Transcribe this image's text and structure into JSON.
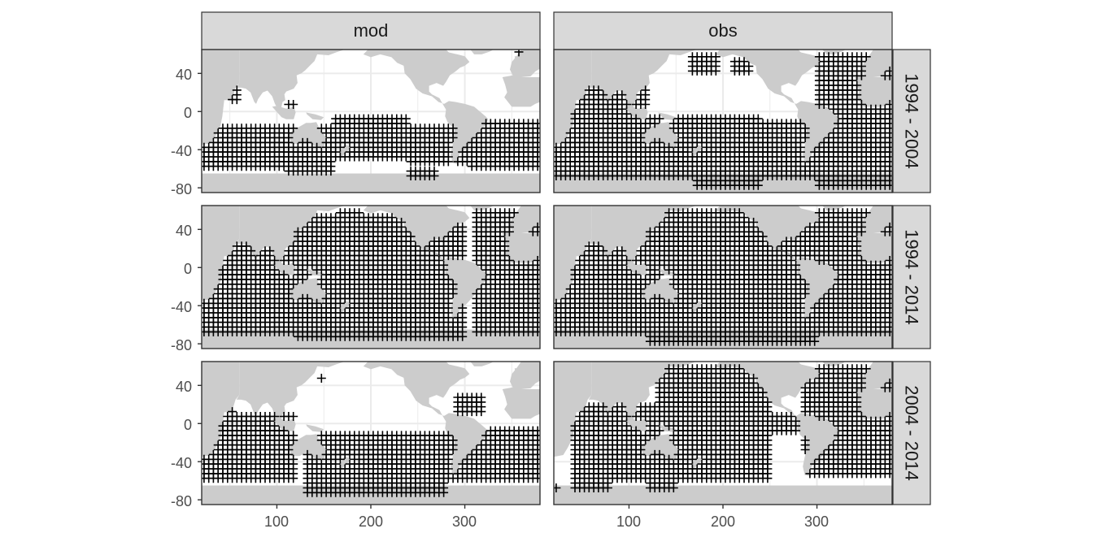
{
  "chart_data": {
    "type": "scatter",
    "facet_columns": [
      "mod",
      "obs"
    ],
    "facet_rows": [
      "1994 - 2004",
      "1994 - 2014",
      "2004 - 2014"
    ],
    "marker": "plus",
    "xlim": [
      20,
      380
    ],
    "ylim": [
      -85,
      65
    ],
    "x_ticks": [
      100,
      200,
      300
    ],
    "y_ticks": [
      40,
      0,
      -40,
      -80
    ],
    "grid": true,
    "legend": "none",
    "colors": {
      "land": "#cccccc",
      "ocean": "#ffffff",
      "marker": "#000000",
      "strip_fill": "#d9d9d9",
      "grid": "#ebebeb",
      "panel_border": "#333333"
    },
    "points": {
      "mod|1994 - 2004": "Significant grid cells concentrated in the southern mid-latitude band (about -20 to -60) across all basins, plus isolated cells in the Arabian Sea, Indonesian seas, Caribbean, Arctic, and near Antarctica.",
      "mod|1994 - 2014": "Significant grid cells cover most of the Indian, Pacific and Atlantic oceans from about 60N to -70S.",
      "mod|2004 - 2014": "Significant grid cells over the Indian Ocean, South Pacific, South Atlantic and tropical North Atlantic.",
      "obs|1994 - 2004": "Significant grid cells over most of the Indian, Pacific and Atlantic oceans except the central North Pacific.",
      "obs|1994 - 2014": "Significant grid cells cover nearly all ocean regions.",
      "obs|2004 - 2014": "Significant grid cells cover most oceans except parts of the eastern tropical Pacific and the Southern Ocean."
    }
  }
}
